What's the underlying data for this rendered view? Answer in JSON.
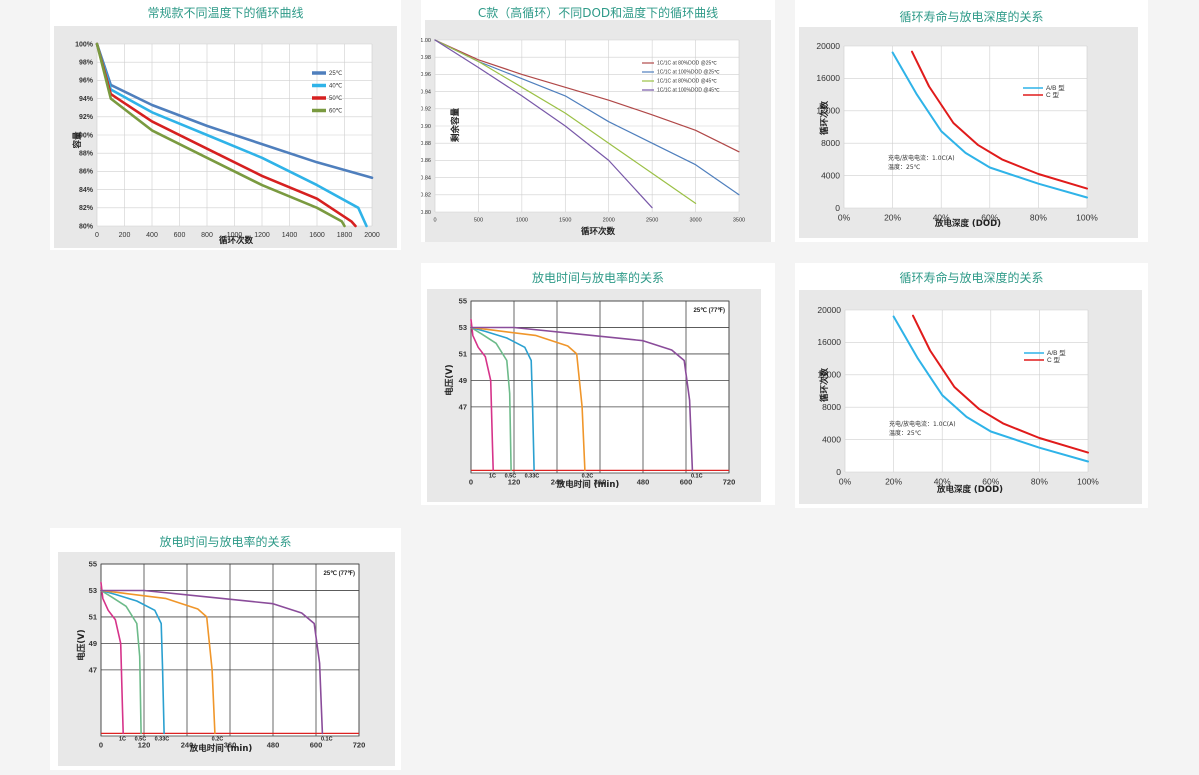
{
  "chart_data": [
    {
      "id": "c1",
      "type": "line",
      "title": "常规款不同温度下的循环曲线",
      "xlabel": "循环次数",
      "ylabel": "容量",
      "xlim": [
        0,
        2000
      ],
      "ylim": [
        80,
        100
      ],
      "x_ticks": [
        "0",
        "200",
        "400",
        "600",
        "800",
        "1000",
        "1200",
        "1400",
        "1600",
        "1800",
        "2000"
      ],
      "y_ticks": [
        "80%",
        "82%",
        "84%",
        "86%",
        "88%",
        "90%",
        "92%",
        "94%",
        "96%",
        "98%",
        "100%"
      ],
      "grid": true,
      "legend_position": "top-right",
      "series": [
        {
          "name": "25℃",
          "color": "#4f7fbd",
          "x": [
            0,
            100,
            400,
            800,
            1200,
            1600,
            2000
          ],
          "y": [
            100,
            95.5,
            93.3,
            91,
            89,
            87,
            85.3
          ]
        },
        {
          "name": "40℃",
          "color": "#2fb3e8",
          "x": [
            0,
            100,
            400,
            800,
            1200,
            1600,
            1900,
            1960
          ],
          "y": [
            100,
            95,
            92.5,
            90,
            87.5,
            84.5,
            82,
            80
          ]
        },
        {
          "name": "50℃",
          "color": "#d62020",
          "x": [
            0,
            100,
            400,
            800,
            1200,
            1600,
            1850,
            1880
          ],
          "y": [
            100,
            94.5,
            91.5,
            88.5,
            85.5,
            83,
            80.5,
            80
          ]
        },
        {
          "name": "60℃",
          "color": "#7a9a40",
          "x": [
            0,
            100,
            400,
            800,
            1200,
            1600,
            1780,
            1800
          ],
          "y": [
            100,
            94,
            90.5,
            87.5,
            84.5,
            82,
            80.5,
            80
          ]
        }
      ]
    },
    {
      "id": "c2",
      "type": "line",
      "title": "C款（高循环）不同DOD和温度下的循环曲线",
      "xlabel": "循环次数",
      "ylabel": "剩余容量",
      "xlim": [
        0,
        3500
      ],
      "ylim": [
        0.8,
        1.0
      ],
      "x_ticks": [
        "0",
        "500",
        "1000",
        "1500",
        "2000",
        "2500",
        "3000",
        "3500"
      ],
      "y_ticks": [
        "0.80",
        "0.82",
        "0.84",
        "0.86",
        "0.88",
        "0.90",
        "0.92",
        "0.94",
        "0.96",
        "0.98",
        "1.00"
      ],
      "grid": true,
      "legend_position": "top-right",
      "series": [
        {
          "name": "1C/1C at 80%DOD @25℃",
          "color": "#b04848",
          "x": [
            0,
            500,
            1000,
            1500,
            2000,
            2500,
            3000,
            3500
          ],
          "y": [
            1.0,
            0.977,
            0.96,
            0.945,
            0.93,
            0.913,
            0.895,
            0.87
          ]
        },
        {
          "name": "1C/1C at 100%DOD @25℃",
          "color": "#4f7fbd",
          "x": [
            0,
            500,
            1000,
            1500,
            2000,
            2500,
            3000,
            3500
          ],
          "y": [
            1.0,
            0.975,
            0.955,
            0.935,
            0.905,
            0.88,
            0.855,
            0.82
          ]
        },
        {
          "name": "1C/1C at 80%DOD @45℃",
          "color": "#9bc046",
          "x": [
            0,
            500,
            1000,
            1500,
            2000,
            2500,
            3000
          ],
          "y": [
            1.0,
            0.975,
            0.945,
            0.915,
            0.88,
            0.845,
            0.81
          ]
        },
        {
          "name": "1C/1C at 100%DOD @45℃",
          "color": "#7858a8",
          "x": [
            0,
            500,
            1000,
            1500,
            2000,
            2500
          ],
          "y": [
            1.0,
            0.968,
            0.935,
            0.9,
            0.86,
            0.805
          ]
        }
      ]
    },
    {
      "id": "c3",
      "type": "line",
      "title": "循环寿命与放电深度的关系",
      "xlabel": "放电深度 (DOD)",
      "ylabel": "循环次数",
      "xlim": [
        0,
        100
      ],
      "ylim": [
        0,
        20000
      ],
      "x_ticks": [
        "0%",
        "20%",
        "40%",
        "60%",
        "80%",
        "100%"
      ],
      "y_ticks": [
        "0",
        "4000",
        "8000",
        "12000",
        "16000",
        "20000"
      ],
      "grid": true,
      "legend_position": "right",
      "annotation_lines": [
        "充电/放电电流：1.0C(A)",
        "温度：25℃"
      ],
      "series": [
        {
          "name": "A/B 型",
          "color": "#2fb3e8",
          "x": [
            20,
            30,
            40,
            50,
            60,
            80,
            100
          ],
          "y": [
            19200,
            14000,
            9500,
            6800,
            5000,
            3000,
            1300
          ]
        },
        {
          "name": "C 型",
          "color": "#e01b1b",
          "x": [
            28,
            35,
            45,
            55,
            65,
            80,
            100
          ],
          "y": [
            19300,
            15000,
            10500,
            7800,
            6000,
            4200,
            2400
          ]
        }
      ]
    },
    {
      "id": "c4",
      "type": "line",
      "title": "放电时间与放电率的关系",
      "xlabel": "放电时间 (min)",
      "ylabel": "电压(V)",
      "xlim": [
        0,
        720
      ],
      "ylim": [
        42,
        55
      ],
      "x_ticks": [
        "0",
        "120",
        "240",
        "360",
        "480",
        "600",
        "720"
      ],
      "y_ticks": [
        "47",
        "49",
        "51",
        "53",
        "55"
      ],
      "grid": true,
      "corner_label": "25℃ (77℉)",
      "cutoff_v": 42.2,
      "rate_labels": [
        {
          "t": "1C",
          "x": 60
        },
        {
          "t": "0.5C",
          "x": 110
        },
        {
          "t": "0.33C",
          "x": 170
        },
        {
          "t": "0.2C",
          "x": 325
        },
        {
          "t": "0.1C",
          "x": 630
        }
      ],
      "series": [
        {
          "name": "1C",
          "color": "#d6338a",
          "x": [
            0,
            5,
            20,
            40,
            55,
            60,
            62
          ],
          "y": [
            53.6,
            52.4,
            51.5,
            50.8,
            49,
            44,
            42.2
          ]
        },
        {
          "name": "0.5C",
          "color": "#6dbb8a",
          "x": [
            0,
            30,
            70,
            100,
            108,
            112
          ],
          "y": [
            53.0,
            52.5,
            51.8,
            50.5,
            48,
            42.2
          ]
        },
        {
          "name": "0.33C",
          "color": "#2aa0d0",
          "x": [
            0,
            40,
            100,
            150,
            168,
            172,
            176
          ],
          "y": [
            53.0,
            52.7,
            52.2,
            51.5,
            50.5,
            47,
            42.2
          ]
        },
        {
          "name": "0.2C",
          "color": "#f0962a",
          "x": [
            0,
            60,
            180,
            270,
            295,
            310,
            318
          ],
          "y": [
            53.0,
            52.8,
            52.4,
            51.6,
            51.0,
            47,
            42.2
          ]
        },
        {
          "name": "0.1C",
          "color": "#8a4c9a",
          "x": [
            0,
            120,
            300,
            480,
            560,
            595,
            610,
            618
          ],
          "y": [
            53.0,
            53.0,
            52.5,
            52.0,
            51.3,
            50.5,
            47.5,
            42.2
          ]
        }
      ]
    },
    {
      "id": "c5",
      "type": "line",
      "title": "循环寿命与放电深度的关系",
      "xlabel": "放电深度 (DOD)",
      "ylabel": "循环次数",
      "xlim": [
        0,
        100
      ],
      "ylim": [
        0,
        20000
      ],
      "x_ticks": [
        "0%",
        "20%",
        "40%",
        "60%",
        "80%",
        "100%"
      ],
      "y_ticks": [
        "0",
        "4000",
        "8000",
        "12000",
        "16000",
        "20000"
      ],
      "grid": true,
      "legend_position": "right",
      "annotation_lines": [
        "充电/放电电流：1.0C(A)",
        "温度：25℃"
      ],
      "series": [
        {
          "name": "A/B 型",
          "color": "#2fb3e8",
          "x": [
            20,
            30,
            40,
            50,
            60,
            80,
            100
          ],
          "y": [
            19200,
            14000,
            9500,
            6800,
            5000,
            3000,
            1300
          ]
        },
        {
          "name": "C 型",
          "color": "#e01b1b",
          "x": [
            28,
            35,
            45,
            55,
            65,
            80,
            100
          ],
          "y": [
            19300,
            15000,
            10500,
            7800,
            6000,
            4200,
            2400
          ]
        }
      ]
    },
    {
      "id": "c6",
      "type": "line",
      "title": "放电时间与放电率的关系",
      "xlabel": "放电时间 (min)",
      "ylabel": "电压(V)",
      "xlim": [
        0,
        720
      ],
      "ylim": [
        42,
        55
      ],
      "x_ticks": [
        "0",
        "120",
        "240",
        "360",
        "480",
        "600",
        "720"
      ],
      "y_ticks": [
        "47",
        "49",
        "51",
        "53",
        "55"
      ],
      "grid": true,
      "corner_label": "25℃ (77℉)",
      "cutoff_v": 42.2,
      "rate_labels": [
        {
          "t": "1C",
          "x": 60
        },
        {
          "t": "0.5C",
          "x": 110
        },
        {
          "t": "0.33C",
          "x": 170
        },
        {
          "t": "0.2C",
          "x": 325
        },
        {
          "t": "0.1C",
          "x": 630
        }
      ],
      "series": [
        {
          "name": "1C",
          "color": "#d6338a",
          "x": [
            0,
            5,
            20,
            40,
            55,
            60,
            62
          ],
          "y": [
            53.6,
            52.4,
            51.5,
            50.8,
            49,
            44,
            42.2
          ]
        },
        {
          "name": "0.5C",
          "color": "#6dbb8a",
          "x": [
            0,
            30,
            70,
            100,
            108,
            112
          ],
          "y": [
            53.0,
            52.5,
            51.8,
            50.5,
            48,
            42.2
          ]
        },
        {
          "name": "0.33C",
          "color": "#2aa0d0",
          "x": [
            0,
            40,
            100,
            150,
            168,
            172,
            176
          ],
          "y": [
            53.0,
            52.7,
            52.2,
            51.5,
            50.5,
            47,
            42.2
          ]
        },
        {
          "name": "0.2C",
          "color": "#f0962a",
          "x": [
            0,
            60,
            180,
            270,
            295,
            310,
            318
          ],
          "y": [
            53.0,
            52.8,
            52.4,
            51.6,
            51.0,
            47,
            42.2
          ]
        },
        {
          "name": "0.1C",
          "color": "#8a4c9a",
          "x": [
            0,
            120,
            300,
            480,
            560,
            595,
            610,
            618
          ],
          "y": [
            53.0,
            53.0,
            52.5,
            52.0,
            51.3,
            50.5,
            47.5,
            42.2
          ]
        }
      ]
    }
  ]
}
